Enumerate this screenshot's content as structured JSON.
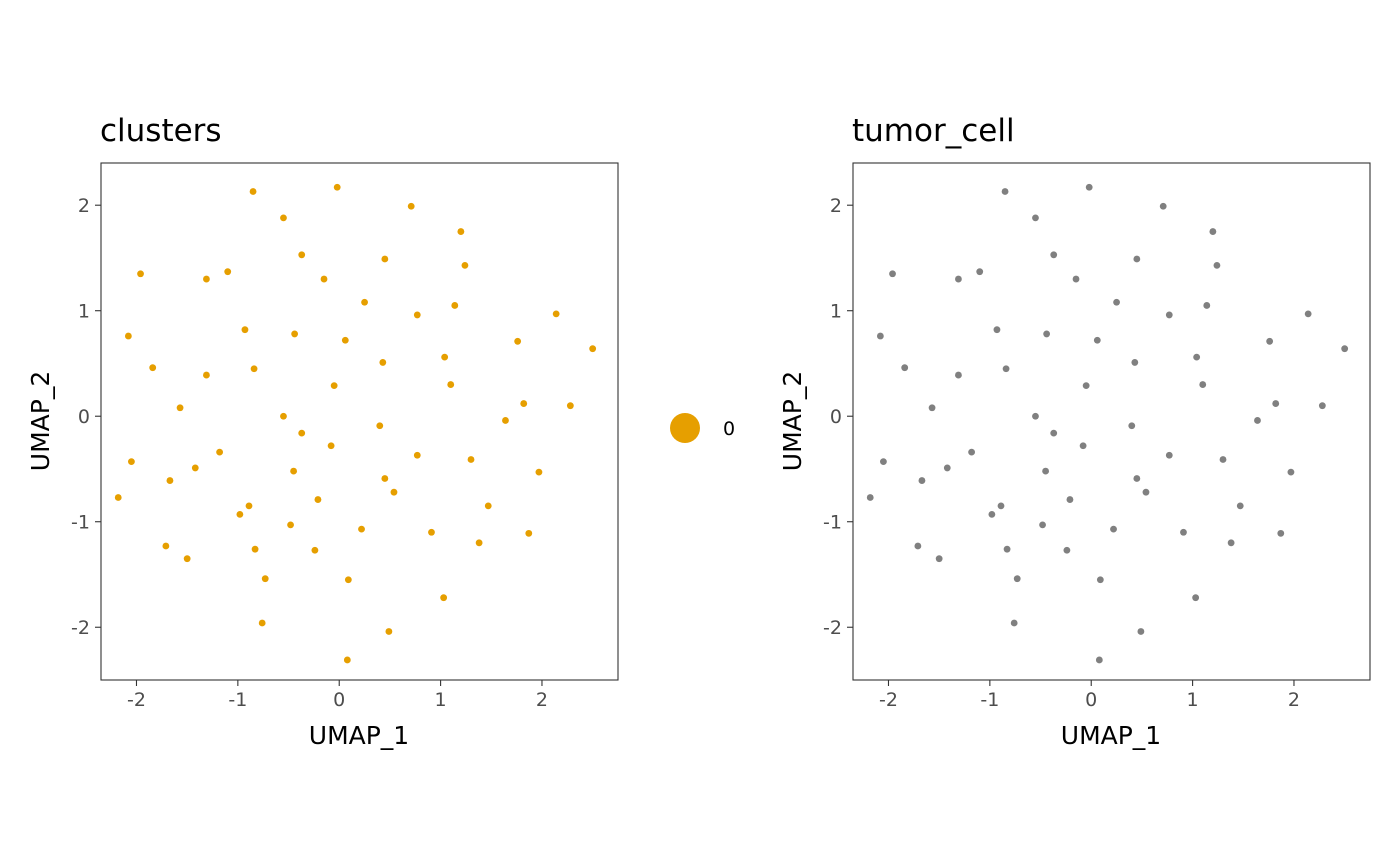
{
  "chart_data": [
    {
      "type": "scatter",
      "title": "clusters",
      "xlabel": "UMAP_1",
      "ylabel": "UMAP_2",
      "xlim": [
        -2.35,
        2.75
      ],
      "ylim": [
        -2.5,
        2.4
      ],
      "x_ticks": [
        -2,
        -1,
        0,
        1,
        2
      ],
      "y_ticks": [
        -2,
        -1,
        0,
        1,
        2
      ],
      "tick_labels_x": [
        "-2",
        "-1",
        "0",
        "1",
        "2"
      ],
      "tick_labels_y": [
        "-2",
        "-1",
        "0",
        "1",
        "2"
      ],
      "grid": false,
      "legend": "right",
      "point_color": "#E69F00",
      "series": [
        {
          "name": "0",
          "points": [
            [
              -0.85,
              2.13
            ],
            [
              -0.02,
              2.17
            ],
            [
              0.71,
              1.99
            ],
            [
              -0.55,
              1.88
            ],
            [
              1.2,
              1.75
            ],
            [
              -0.37,
              1.53
            ],
            [
              0.45,
              1.49
            ],
            [
              1.24,
              1.43
            ],
            [
              -1.96,
              1.35
            ],
            [
              -1.1,
              1.37
            ],
            [
              -1.31,
              1.3
            ],
            [
              -0.15,
              1.3
            ],
            [
              0.25,
              1.08
            ],
            [
              1.14,
              1.05
            ],
            [
              0.77,
              0.96
            ],
            [
              2.14,
              0.97
            ],
            [
              -0.93,
              0.82
            ],
            [
              -0.44,
              0.78
            ],
            [
              -2.08,
              0.76
            ],
            [
              0.06,
              0.72
            ],
            [
              1.76,
              0.71
            ],
            [
              2.5,
              0.64
            ],
            [
              1.04,
              0.56
            ],
            [
              0.43,
              0.51
            ],
            [
              -1.84,
              0.46
            ],
            [
              -0.84,
              0.45
            ],
            [
              -1.31,
              0.39
            ],
            [
              1.1,
              0.3
            ],
            [
              -0.05,
              0.29
            ],
            [
              1.82,
              0.12
            ],
            [
              2.28,
              0.1
            ],
            [
              -1.57,
              0.08
            ],
            [
              -0.55,
              0.0
            ],
            [
              1.64,
              -0.04
            ],
            [
              0.4,
              -0.09
            ],
            [
              -0.37,
              -0.16
            ],
            [
              -0.08,
              -0.28
            ],
            [
              -1.18,
              -0.34
            ],
            [
              0.77,
              -0.37
            ],
            [
              1.3,
              -0.41
            ],
            [
              -2.05,
              -0.43
            ],
            [
              -1.42,
              -0.49
            ],
            [
              -0.45,
              -0.52
            ],
            [
              1.97,
              -0.53
            ],
            [
              0.45,
              -0.59
            ],
            [
              -1.67,
              -0.61
            ],
            [
              0.54,
              -0.72
            ],
            [
              -2.18,
              -0.77
            ],
            [
              -0.21,
              -0.79
            ],
            [
              1.47,
              -0.85
            ],
            [
              -0.89,
              -0.85
            ],
            [
              -0.98,
              -0.93
            ],
            [
              -0.48,
              -1.03
            ],
            [
              0.22,
              -1.07
            ],
            [
              0.91,
              -1.1
            ],
            [
              1.87,
              -1.11
            ],
            [
              1.38,
              -1.2
            ],
            [
              -1.71,
              -1.23
            ],
            [
              -0.83,
              -1.26
            ],
            [
              -0.24,
              -1.27
            ],
            [
              -1.5,
              -1.35
            ],
            [
              0.09,
              -1.55
            ],
            [
              -0.73,
              -1.54
            ],
            [
              1.03,
              -1.72
            ],
            [
              -0.76,
              -1.96
            ],
            [
              0.49,
              -2.04
            ],
            [
              0.08,
              -2.31
            ]
          ]
        }
      ]
    },
    {
      "type": "scatter",
      "title": "tumor_cell",
      "xlabel": "UMAP_1",
      "ylabel": "UMAP_2",
      "xlim": [
        -2.35,
        2.75
      ],
      "ylim": [
        -2.5,
        2.4
      ],
      "x_ticks": [
        -2,
        -1,
        0,
        1,
        2
      ],
      "y_ticks": [
        -2,
        -1,
        0,
        1,
        2
      ],
      "tick_labels_x": [
        "-2",
        "-1",
        "0",
        "1",
        "2"
      ],
      "tick_labels_y": [
        "-2",
        "-1",
        "0",
        "1",
        "2"
      ],
      "grid": false,
      "legend": "none",
      "point_color": "#808080",
      "series": [
        {
          "points": [
            [
              -0.85,
              2.13
            ],
            [
              -0.02,
              2.17
            ],
            [
              0.71,
              1.99
            ],
            [
              -0.55,
              1.88
            ],
            [
              1.2,
              1.75
            ],
            [
              -0.37,
              1.53
            ],
            [
              0.45,
              1.49
            ],
            [
              1.24,
              1.43
            ],
            [
              -1.96,
              1.35
            ],
            [
              -1.1,
              1.37
            ],
            [
              -1.31,
              1.3
            ],
            [
              -0.15,
              1.3
            ],
            [
              0.25,
              1.08
            ],
            [
              1.14,
              1.05
            ],
            [
              0.77,
              0.96
            ],
            [
              2.14,
              0.97
            ],
            [
              -0.93,
              0.82
            ],
            [
              -0.44,
              0.78
            ],
            [
              -2.08,
              0.76
            ],
            [
              0.06,
              0.72
            ],
            [
              1.76,
              0.71
            ],
            [
              2.5,
              0.64
            ],
            [
              1.04,
              0.56
            ],
            [
              0.43,
              0.51
            ],
            [
              -1.84,
              0.46
            ],
            [
              -0.84,
              0.45
            ],
            [
              -1.31,
              0.39
            ],
            [
              1.1,
              0.3
            ],
            [
              -0.05,
              0.29
            ],
            [
              1.82,
              0.12
            ],
            [
              2.28,
              0.1
            ],
            [
              -1.57,
              0.08
            ],
            [
              -0.55,
              0.0
            ],
            [
              1.64,
              -0.04
            ],
            [
              0.4,
              -0.09
            ],
            [
              -0.37,
              -0.16
            ],
            [
              -0.08,
              -0.28
            ],
            [
              -1.18,
              -0.34
            ],
            [
              0.77,
              -0.37
            ],
            [
              1.3,
              -0.41
            ],
            [
              -2.05,
              -0.43
            ],
            [
              -1.42,
              -0.49
            ],
            [
              -0.45,
              -0.52
            ],
            [
              1.97,
              -0.53
            ],
            [
              0.45,
              -0.59
            ],
            [
              -1.67,
              -0.61
            ],
            [
              0.54,
              -0.72
            ],
            [
              -2.18,
              -0.77
            ],
            [
              -0.21,
              -0.79
            ],
            [
              1.47,
              -0.85
            ],
            [
              -0.89,
              -0.85
            ],
            [
              -0.98,
              -0.93
            ],
            [
              -0.48,
              -1.03
            ],
            [
              0.22,
              -1.07
            ],
            [
              0.91,
              -1.1
            ],
            [
              1.87,
              -1.11
            ],
            [
              1.38,
              -1.2
            ],
            [
              -1.71,
              -1.23
            ],
            [
              -0.83,
              -1.26
            ],
            [
              -0.24,
              -1.27
            ],
            [
              -1.5,
              -1.35
            ],
            [
              0.09,
              -1.55
            ],
            [
              -0.73,
              -1.54
            ],
            [
              1.03,
              -1.72
            ],
            [
              -0.76,
              -1.96
            ],
            [
              0.49,
              -2.04
            ],
            [
              0.08,
              -2.31
            ]
          ]
        }
      ]
    }
  ]
}
